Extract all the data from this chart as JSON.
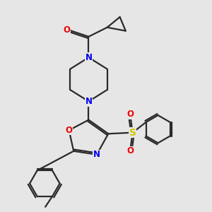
{
  "bg_color": "#e6e6e6",
  "bond_color": "#2a2a2a",
  "bond_width": 1.6,
  "atom_colors": {
    "N": "#0000ee",
    "O": "#ee0000",
    "S": "#cccc00",
    "C": "#2a2a2a"
  },
  "font_size_atom": 8.5
}
